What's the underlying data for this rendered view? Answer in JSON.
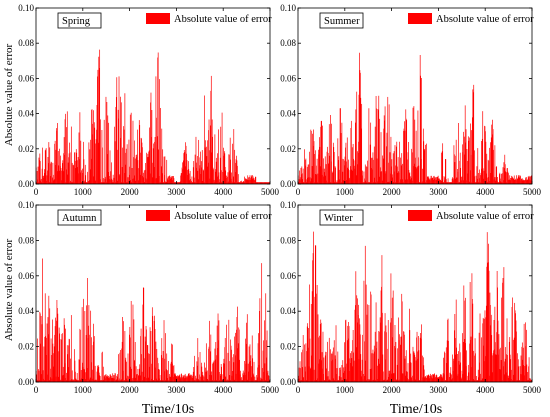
{
  "ylabel": "Absolute value of error",
  "xlabel": "Time/10s",
  "colors": {
    "series": "#ff0000",
    "axis": "#000000",
    "background": "#ffffff"
  },
  "chart_data": [
    {
      "type": "bar",
      "season": "Spring",
      "legend": "Absolute value of error",
      "xlim": [
        0,
        5000
      ],
      "ylim": [
        0,
        0.1
      ],
      "xticks": [
        "0",
        "1000",
        "2000",
        "3000",
        "4000",
        "5000"
      ],
      "yticks": [
        "0.00",
        "0.02",
        "0.04",
        "0.06",
        "0.08",
        "0.10"
      ],
      "peaks": [
        {
          "x": 100,
          "y": 0.03
        },
        {
          "x": 250,
          "y": 0.032
        },
        {
          "x": 450,
          "y": 0.038
        },
        {
          "x": 650,
          "y": 0.048
        },
        {
          "x": 800,
          "y": 0.052
        },
        {
          "x": 950,
          "y": 0.045
        },
        {
          "x": 1200,
          "y": 0.055
        },
        {
          "x": 1350,
          "y": 0.085
        },
        {
          "x": 1500,
          "y": 0.06
        },
        {
          "x": 1750,
          "y": 0.078
        },
        {
          "x": 1850,
          "y": 0.082
        },
        {
          "x": 2050,
          "y": 0.06
        },
        {
          "x": 2200,
          "y": 0.045
        },
        {
          "x": 2450,
          "y": 0.055
        },
        {
          "x": 2600,
          "y": 0.085
        },
        {
          "x": 2750,
          "y": 0.02
        },
        {
          "x": 3200,
          "y": 0.025
        },
        {
          "x": 3450,
          "y": 0.035
        },
        {
          "x": 3600,
          "y": 0.055
        },
        {
          "x": 3750,
          "y": 0.064
        },
        {
          "x": 3950,
          "y": 0.05
        },
        {
          "x": 4200,
          "y": 0.045
        },
        {
          "x": 4450,
          "y": 0.005
        }
      ],
      "gaps": [
        [
          2800,
          2950
        ],
        [
          4450,
          4700
        ]
      ]
    },
    {
      "type": "bar",
      "season": "Summer",
      "legend": "Absolute value of error",
      "xlim": [
        0,
        5000
      ],
      "ylim": [
        0,
        0.1
      ],
      "xticks": [
        "0",
        "1000",
        "2000",
        "3000",
        "4000",
        "5000"
      ],
      "yticks": [
        "0.00",
        "0.02",
        "0.04",
        "0.06",
        "0.08",
        "0.10"
      ],
      "peaks": [
        {
          "x": 100,
          "y": 0.03
        },
        {
          "x": 300,
          "y": 0.04
        },
        {
          "x": 500,
          "y": 0.042
        },
        {
          "x": 700,
          "y": 0.045
        },
        {
          "x": 900,
          "y": 0.048
        },
        {
          "x": 1100,
          "y": 0.055
        },
        {
          "x": 1300,
          "y": 0.085
        },
        {
          "x": 1500,
          "y": 0.065
        },
        {
          "x": 1700,
          "y": 0.07
        },
        {
          "x": 1900,
          "y": 0.072
        },
        {
          "x": 2100,
          "y": 0.06
        },
        {
          "x": 2300,
          "y": 0.045
        },
        {
          "x": 2450,
          "y": 0.055
        },
        {
          "x": 2600,
          "y": 0.088
        },
        {
          "x": 2750,
          "y": 0.03
        },
        {
          "x": 3100,
          "y": 0.025
        },
        {
          "x": 3400,
          "y": 0.045
        },
        {
          "x": 3600,
          "y": 0.06
        },
        {
          "x": 3750,
          "y": 0.068
        },
        {
          "x": 3950,
          "y": 0.05
        },
        {
          "x": 4150,
          "y": 0.04
        },
        {
          "x": 4400,
          "y": 0.02
        }
      ],
      "gaps": [
        [
          2750,
          3050
        ],
        [
          4500,
          5000
        ]
      ]
    },
    {
      "type": "bar",
      "season": "Autumn",
      "legend": "Absolute value of error",
      "xlim": [
        0,
        5000
      ],
      "ylim": [
        0,
        0.1
      ],
      "xticks": [
        "0",
        "1000",
        "2000",
        "3000",
        "4000",
        "5000"
      ],
      "yticks": [
        "0.00",
        "0.02",
        "0.04",
        "0.06",
        "0.08",
        "0.10"
      ],
      "peaks": [
        {
          "x": 50,
          "y": 0.03
        },
        {
          "x": 150,
          "y": 0.086
        },
        {
          "x": 300,
          "y": 0.06
        },
        {
          "x": 450,
          "y": 0.05
        },
        {
          "x": 600,
          "y": 0.042
        },
        {
          "x": 750,
          "y": 0.04
        },
        {
          "x": 1000,
          "y": 0.055
        },
        {
          "x": 1100,
          "y": 0.09
        },
        {
          "x": 1200,
          "y": 0.05
        },
        {
          "x": 1400,
          "y": 0.02
        },
        {
          "x": 1850,
          "y": 0.045
        },
        {
          "x": 2050,
          "y": 0.055
        },
        {
          "x": 2300,
          "y": 0.058
        },
        {
          "x": 2500,
          "y": 0.06
        },
        {
          "x": 2700,
          "y": 0.055
        },
        {
          "x": 2900,
          "y": 0.025
        },
        {
          "x": 3450,
          "y": 0.03
        },
        {
          "x": 3700,
          "y": 0.04
        },
        {
          "x": 3900,
          "y": 0.045
        },
        {
          "x": 4100,
          "y": 0.042
        },
        {
          "x": 4300,
          "y": 0.045
        },
        {
          "x": 4550,
          "y": 0.055
        },
        {
          "x": 4850,
          "y": 0.09
        }
      ],
      "gaps": [
        [
          1450,
          1700
        ],
        [
          2950,
          3350
        ]
      ]
    },
    {
      "type": "bar",
      "season": "Winter",
      "legend": "Absolute value of error",
      "xlim": [
        0,
        5000
      ],
      "ylim": [
        0,
        0.1
      ],
      "xticks": [
        "0",
        "1000",
        "2000",
        "3000",
        "4000",
        "5000"
      ],
      "yticks": [
        "0.00",
        "0.02",
        "0.04",
        "0.06",
        "0.08",
        "0.10"
      ],
      "peaks": [
        {
          "x": 100,
          "y": 0.03
        },
        {
          "x": 250,
          "y": 0.06
        },
        {
          "x": 350,
          "y": 0.098
        },
        {
          "x": 500,
          "y": 0.045
        },
        {
          "x": 650,
          "y": 0.03
        },
        {
          "x": 800,
          "y": 0.04
        },
        {
          "x": 1050,
          "y": 0.05
        },
        {
          "x": 1250,
          "y": 0.07
        },
        {
          "x": 1450,
          "y": 0.085
        },
        {
          "x": 1600,
          "y": 0.088
        },
        {
          "x": 1800,
          "y": 0.08
        },
        {
          "x": 2000,
          "y": 0.075
        },
        {
          "x": 2200,
          "y": 0.06
        },
        {
          "x": 2400,
          "y": 0.05
        },
        {
          "x": 2600,
          "y": 0.05
        },
        {
          "x": 3200,
          "y": 0.04
        },
        {
          "x": 3400,
          "y": 0.06
        },
        {
          "x": 3550,
          "y": 0.07
        },
        {
          "x": 3700,
          "y": 0.08
        },
        {
          "x": 3950,
          "y": 0.07
        },
        {
          "x": 4050,
          "y": 0.095
        },
        {
          "x": 4250,
          "y": 0.065
        },
        {
          "x": 4400,
          "y": 0.075
        },
        {
          "x": 4600,
          "y": 0.06
        },
        {
          "x": 4850,
          "y": 0.04
        }
      ],
      "gaps": [
        [
          2700,
          3100
        ]
      ]
    }
  ]
}
